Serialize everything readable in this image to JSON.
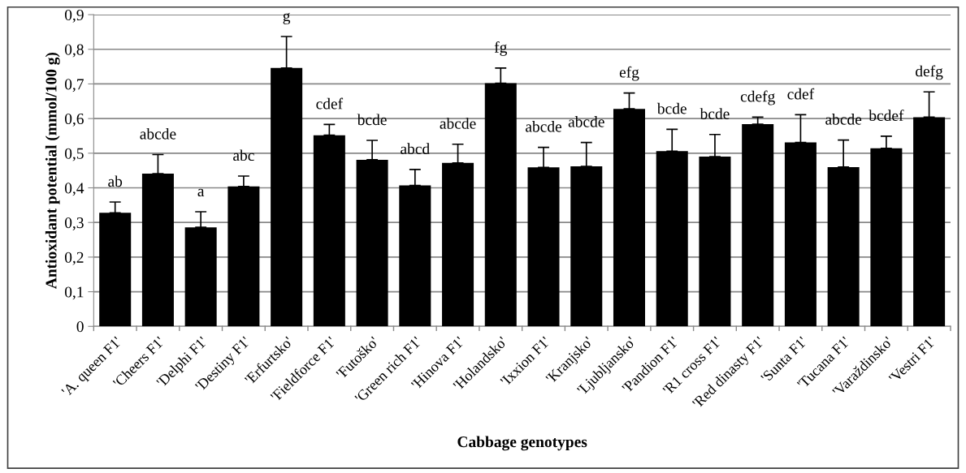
{
  "chart_data": {
    "type": "bar",
    "xlabel": "Cabbage genotypes",
    "ylabel": "Antioxidant potential (mmol/100 g)",
    "categories": [
      "'A. queen F1'",
      "'Cheers F1'",
      "'Delphi F1'",
      "'Destiny F1'",
      "'Erfurtsko'",
      "'Fieldforce F1'",
      "'Futoško'",
      "'Green rich F1'",
      "'Hinova F1'",
      "'Holandsko'",
      "'Ixxion F1'",
      "'Kranjsko'",
      "'Ljubljansko'",
      "'Pandion F1'",
      "'R1 cross F1'",
      "'Red dinasty F1'",
      "'Sunta F1'",
      "'Tucana F1'",
      "'Varaždinsko'",
      "'Vestri F1'"
    ],
    "values": [
      0.328,
      0.441,
      0.286,
      0.404,
      0.746,
      0.552,
      0.481,
      0.407,
      0.472,
      0.702,
      0.459,
      0.462,
      0.628,
      0.506,
      0.49,
      0.584,
      0.531,
      0.46,
      0.514,
      0.604
    ],
    "errors": [
      [
        0.328,
        0.359
      ],
      [
        0.441,
        0.496
      ],
      [
        0.286,
        0.331
      ],
      [
        0.404,
        0.434
      ],
      [
        0.746,
        0.837
      ],
      [
        0.552,
        0.583
      ],
      [
        0.481,
        0.537
      ],
      [
        0.407,
        0.453
      ],
      [
        0.472,
        0.526
      ],
      [
        0.702,
        0.746
      ],
      [
        0.459,
        0.517
      ],
      [
        0.462,
        0.531
      ],
      [
        0.628,
        0.674
      ],
      [
        0.506,
        0.569
      ],
      [
        0.49,
        0.554
      ],
      [
        0.584,
        0.604
      ],
      [
        0.531,
        0.611
      ],
      [
        0.46,
        0.538
      ],
      [
        0.514,
        0.549
      ],
      [
        0.604,
        0.677
      ]
    ],
    "color": "#000000",
    "ylim": [
      0,
      0.9
    ],
    "yticks": [
      0,
      {
        "value": 0.1,
        "label": "0,1"
      },
      {
        "value": 0.2,
        "label": "0,2"
      },
      {
        "value": 0.3,
        "label": "0,3"
      },
      {
        "value": 0.4,
        "label": "0,4"
      },
      {
        "value": 0.5,
        "label": "0,5"
      },
      {
        "value": 0.6,
        "label": "0,6"
      },
      {
        "value": 0.7,
        "label": "0,7"
      },
      {
        "value": 0.8,
        "label": "0,8"
      },
      {
        "value": 0.9,
        "label": "0,9"
      }
    ],
    "grid": "y",
    "annotations": [
      "ab",
      "abcde",
      "a",
      "abc",
      "g",
      "cdef",
      "bcde",
      "abcd",
      "abcde",
      "fg",
      "abcde",
      "abcde",
      "efg",
      "bcde",
      "bcde",
      "cdefg",
      "cdef",
      "abcde",
      "bcdef",
      "defg"
    ]
  }
}
